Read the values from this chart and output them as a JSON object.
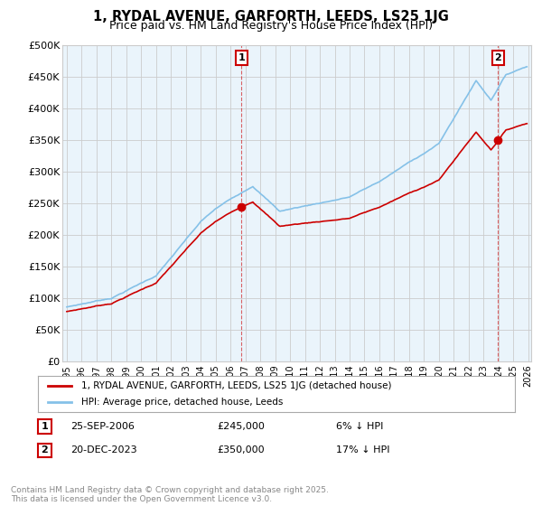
{
  "title": "1, RYDAL AVENUE, GARFORTH, LEEDS, LS25 1JG",
  "subtitle": "Price paid vs. HM Land Registry's House Price Index (HPI)",
  "ylabel_ticks": [
    "£0",
    "£50K",
    "£100K",
    "£150K",
    "£200K",
    "£250K",
    "£300K",
    "£350K",
    "£400K",
    "£450K",
    "£500K"
  ],
  "ytick_values": [
    0,
    50000,
    100000,
    150000,
    200000,
    250000,
    300000,
    350000,
    400000,
    450000,
    500000
  ],
  "ylim": [
    0,
    500000
  ],
  "hpi_color": "#85c1e8",
  "price_color": "#cc0000",
  "grid_color": "#cccccc",
  "bg_color": "#eaf4fb",
  "sale1_year": 2006.73,
  "sale1_price": 245000,
  "sale1_label": "1",
  "sale1_date": "25-SEP-2006",
  "sale1_pct": "6% ↓ HPI",
  "sale2_year": 2023.97,
  "sale2_price": 350000,
  "sale2_label": "2",
  "sale2_date": "20-DEC-2023",
  "sale2_pct": "17% ↓ HPI",
  "legend_line1": "1, RYDAL AVENUE, GARFORTH, LEEDS, LS25 1JG (detached house)",
  "legend_line2": "HPI: Average price, detached house, Leeds",
  "footnote": "Contains HM Land Registry data © Crown copyright and database right 2025.\nThis data is licensed under the Open Government Licence v3.0.",
  "xmin": 1995,
  "xmax": 2026
}
